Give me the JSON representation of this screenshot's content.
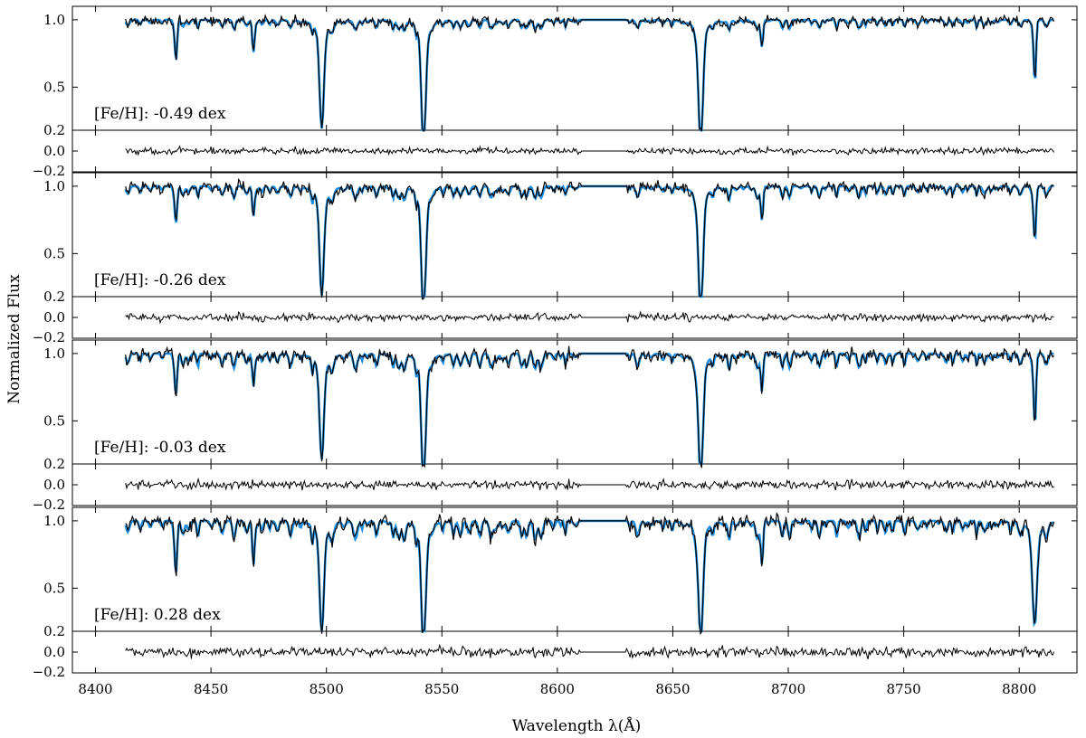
{
  "chart_data": {
    "type": "line",
    "xlabel": "Wavelength λ(Å)",
    "ylabel": "Normalized Flux",
    "xlim": [
      8390,
      8825
    ],
    "xticks": [
      8400,
      8450,
      8500,
      8550,
      8600,
      8650,
      8700,
      8750,
      8800
    ],
    "flux_ylim": [
      0.18,
      1.1
    ],
    "flux_yticks": [
      "1.0",
      "0.5",
      "0.2"
    ],
    "resid_ylim": [
      -0.2,
      0.2
    ],
    "resid_yticks": [
      "0.2",
      "0.0",
      "−0.2"
    ],
    "spectrum_range": [
      8413,
      8815
    ],
    "gap_range": [
      8610,
      8630
    ],
    "colors": {
      "model": "#1f8ee0",
      "observed": "#000000"
    },
    "absorption_lines": [
      {
        "wavelength": 8434.9,
        "depth": [
          0.28,
          0.25,
          0.27,
          0.35
        ]
      },
      {
        "wavelength": 8468.4,
        "depth": [
          0.24,
          0.22,
          0.24,
          0.32
        ]
      },
      {
        "wavelength": 8498.0,
        "depth": [
          0.62,
          0.62,
          0.59,
          0.63
        ]
      },
      {
        "wavelength": 8542.1,
        "depth": [
          0.78,
          0.79,
          0.77,
          0.75
        ]
      },
      {
        "wavelength": 8662.1,
        "depth": [
          0.78,
          0.8,
          0.79,
          0.73
        ]
      },
      {
        "wavelength": 8688.6,
        "depth": [
          0.2,
          0.25,
          0.28,
          0.32
        ]
      },
      {
        "wavelength": 8806.8,
        "depth": [
          0.45,
          0.38,
          0.5,
          0.55
        ]
      }
    ],
    "panels": [
      {
        "label": "[Fe/H]: -0.49 dex",
        "feh": -0.49,
        "noise": 0.03
      },
      {
        "label": "[Fe/H]: -0.26 dex",
        "feh": -0.26,
        "noise": 0.035
      },
      {
        "label": "[Fe/H]: -0.03 dex",
        "feh": -0.03,
        "noise": 0.04
      },
      {
        "label": "[Fe/H]: 0.28 dex",
        "feh": 0.28,
        "noise": 0.045
      }
    ]
  }
}
